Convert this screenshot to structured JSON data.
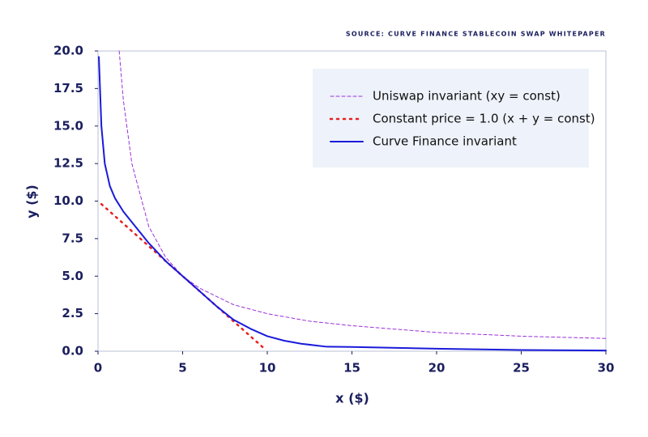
{
  "chart_data": {
    "type": "line",
    "source": "SOURCE: CURVE FINANCE STABLECOIN SWAP WHITEPAPER",
    "x_label": "x ($)",
    "y_label": "y ($)",
    "xlim": [
      0,
      30
    ],
    "ylim": [
      0,
      20
    ],
    "xticks": [
      0,
      5,
      10,
      15,
      20,
      25,
      30
    ],
    "yticks": [
      {
        "value": 0,
        "label": "0.0"
      },
      2.5,
      {
        "value": 5,
        "label": "5.0"
      },
      7.5,
      {
        "value": 10,
        "label": "10.0"
      },
      12.5,
      {
        "value": 15,
        "label": "15.0"
      },
      17.5,
      {
        "value": 20,
        "label": "20.0"
      }
    ],
    "legend": "upper right",
    "series": [
      {
        "name": "Uniswap invariant (xy = const)",
        "color": "#9b30d9",
        "style": "dashed",
        "x": [
          1.25,
          1.5,
          2,
          3,
          4,
          5,
          6,
          8,
          10,
          12.5,
          15,
          20,
          25,
          30
        ],
        "values": [
          20,
          16.7,
          12.5,
          8.3,
          6.25,
          5,
          4.2,
          3.1,
          2.5,
          2,
          1.7,
          1.25,
          1,
          0.85
        ]
      },
      {
        "name": "Constant price = 1.0 (x + y = const)",
        "color": "#e8201e",
        "style": "dotted",
        "x": [
          0.2,
          2,
          4,
          6,
          8,
          9.8
        ],
        "values": [
          9.8,
          8,
          6,
          4,
          2,
          0.2
        ]
      },
      {
        "name": "Curve Finance invariant",
        "color": "#1a1adb",
        "style": "solid",
        "x": [
          0.05,
          0.2,
          0.4,
          0.7,
          1,
          1.5,
          2,
          3,
          4,
          5,
          6,
          7,
          8,
          9,
          10,
          11,
          12,
          13.5,
          15,
          20,
          25,
          30
        ],
        "values": [
          19.6,
          15,
          12.5,
          11,
          10.2,
          9.3,
          8.6,
          7.2,
          6,
          5,
          4,
          3,
          2.1,
          1.5,
          1,
          0.7,
          0.5,
          0.3,
          0.28,
          0.17,
          0.08,
          0.05
        ]
      }
    ]
  }
}
